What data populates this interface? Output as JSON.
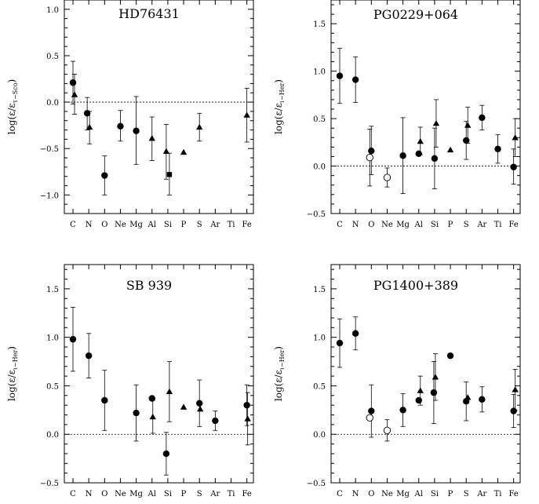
{
  "elements": [
    "C",
    "N",
    "O",
    "Ne",
    "Mg",
    "Al",
    "Si",
    "P",
    "S",
    "Ar",
    "Ti",
    "Fe"
  ],
  "chart_data": [
    {
      "type": "scatter",
      "title": "HD76431",
      "ylabel": "log(ε/ε",
      "ylabel_sub": "τ−Sco",
      "ylim": [
        -1.2,
        1.1
      ],
      "yticks": [
        1.0,
        0.5,
        0.0,
        -0.5,
        -1.0
      ],
      "ytick_labels": [
        "1.0",
        "0.5",
        "0.0",
        "−0.5",
        "−1.0"
      ],
      "reference_line": 0,
      "points": [
        {
          "el": "C",
          "dx": 0.0,
          "y": 0.21,
          "lo": -0.02,
          "hi": 0.44,
          "marker": "circle"
        },
        {
          "el": "C",
          "dx": 0.1,
          "y": 0.08,
          "lo": -0.13,
          "hi": 0.3,
          "marker": "triangle"
        },
        {
          "el": "N",
          "dx": -0.1,
          "y": -0.12,
          "lo": -0.3,
          "hi": 0.05,
          "marker": "circle"
        },
        {
          "el": "N",
          "dx": 0.05,
          "y": -0.27,
          "lo": -0.45,
          "hi": -0.1,
          "marker": "triangle"
        },
        {
          "el": "O",
          "dx": 0.0,
          "y": -0.79,
          "lo": -1.0,
          "hi": -0.58,
          "marker": "circle"
        },
        {
          "el": "Ne",
          "dx": 0.0,
          "y": -0.26,
          "lo": -0.42,
          "hi": -0.09,
          "marker": "circle"
        },
        {
          "el": "Mg",
          "dx": 0.0,
          "y": -0.31,
          "lo": -0.67,
          "hi": 0.06,
          "marker": "circle"
        },
        {
          "el": "Al",
          "dx": 0.0,
          "y": -0.39,
          "lo": -0.63,
          "hi": -0.16,
          "marker": "triangle"
        },
        {
          "el": "Si",
          "dx": -0.1,
          "y": -0.53,
          "lo": -0.83,
          "hi": -0.24,
          "marker": "triangle"
        },
        {
          "el": "Si",
          "dx": 0.1,
          "y": -0.78,
          "lo": -1.0,
          "hi": -0.55,
          "marker": "square"
        },
        {
          "el": "P",
          "dx": 0.0,
          "y": -0.54,
          "lo": null,
          "hi": null,
          "marker": "triangle"
        },
        {
          "el": "S",
          "dx": 0.0,
          "y": -0.27,
          "lo": -0.42,
          "hi": -0.12,
          "marker": "triangle"
        },
        {
          "el": "Fe",
          "dx": 0.0,
          "y": -0.14,
          "lo": -0.43,
          "hi": 0.15,
          "marker": "triangle"
        }
      ]
    },
    {
      "type": "scatter",
      "title": "PG0229+064",
      "ylabel": "log(ε/ε",
      "ylabel_sub": "ι−Her",
      "ylim": [
        -0.5,
        1.75
      ],
      "yticks": [
        1.5,
        1.0,
        0.5,
        0.0,
        -0.5
      ],
      "ytick_labels": [
        "1.5",
        "1.0",
        "0.5",
        "0.0",
        "−0.5"
      ],
      "reference_line": 0,
      "points": [
        {
          "el": "C",
          "dx": 0.0,
          "y": 0.95,
          "lo": 0.66,
          "hi": 1.24,
          "marker": "circle"
        },
        {
          "el": "N",
          "dx": 0.0,
          "y": 0.91,
          "lo": 0.67,
          "hi": 1.15,
          "marker": "circle"
        },
        {
          "el": "O",
          "dx": 0.0,
          "y": 0.16,
          "lo": -0.09,
          "hi": 0.42,
          "marker": "circle"
        },
        {
          "el": "O",
          "dx": -0.1,
          "y": 0.09,
          "lo": -0.21,
          "hi": 0.39,
          "marker": "open-circle"
        },
        {
          "el": "Ne",
          "dx": 0.0,
          "y": -0.12,
          "lo": -0.22,
          "hi": -0.02,
          "marker": "open-circle"
        },
        {
          "el": "Mg",
          "dx": 0.0,
          "y": 0.11,
          "lo": -0.29,
          "hi": 0.51,
          "marker": "circle"
        },
        {
          "el": "Al",
          "dx": 0.0,
          "y": 0.13,
          "lo": null,
          "hi": null,
          "marker": "circle"
        },
        {
          "el": "Al",
          "dx": 0.1,
          "y": 0.26,
          "lo": 0.12,
          "hi": 0.41,
          "marker": "triangle"
        },
        {
          "el": "Si",
          "dx": 0.0,
          "y": 0.08,
          "lo": -0.24,
          "hi": 0.4,
          "marker": "circle"
        },
        {
          "el": "Si",
          "dx": 0.1,
          "y": 0.45,
          "lo": 0.2,
          "hi": 0.7,
          "marker": "triangle"
        },
        {
          "el": "P",
          "dx": 0.0,
          "y": 0.17,
          "lo": null,
          "hi": null,
          "marker": "triangle"
        },
        {
          "el": "S",
          "dx": 0.0,
          "y": 0.27,
          "lo": 0.07,
          "hi": 0.47,
          "marker": "circle"
        },
        {
          "el": "S",
          "dx": 0.1,
          "y": 0.43,
          "lo": 0.24,
          "hi": 0.62,
          "marker": "triangle"
        },
        {
          "el": "Ar",
          "dx": 0.0,
          "y": 0.51,
          "lo": 0.38,
          "hi": 0.64,
          "marker": "circle"
        },
        {
          "el": "Ti",
          "dx": 0.0,
          "y": 0.18,
          "lo": 0.03,
          "hi": 0.33,
          "marker": "circle"
        },
        {
          "el": "Fe",
          "dx": 0.0,
          "y": -0.01,
          "lo": -0.19,
          "hi": 0.18,
          "marker": "circle"
        },
        {
          "el": "Fe",
          "dx": 0.1,
          "y": 0.3,
          "lo": 0.1,
          "hi": 0.5,
          "marker": "triangle"
        }
      ]
    },
    {
      "type": "scatter",
      "title": "SB 939",
      "ylabel": "log(ε/ε",
      "ylabel_sub": "ι−Her",
      "ylim": [
        -0.5,
        1.75
      ],
      "yticks": [
        1.5,
        1.0,
        0.5,
        0.0,
        -0.5
      ],
      "ytick_labels": [
        "1.5",
        "1.0",
        "0.5",
        "0.0",
        "−0.5"
      ],
      "reference_line": 0,
      "points": [
        {
          "el": "C",
          "dx": 0.0,
          "y": 0.98,
          "lo": 0.65,
          "hi": 1.31,
          "marker": "circle"
        },
        {
          "el": "N",
          "dx": 0.0,
          "y": 0.81,
          "lo": 0.58,
          "hi": 1.04,
          "marker": "circle"
        },
        {
          "el": "O",
          "dx": 0.0,
          "y": 0.35,
          "lo": 0.04,
          "hi": 0.66,
          "marker": "circle"
        },
        {
          "el": "Mg",
          "dx": 0.0,
          "y": 0.22,
          "lo": -0.07,
          "hi": 0.51,
          "marker": "circle"
        },
        {
          "el": "Al",
          "dx": 0.0,
          "y": 0.37,
          "lo": null,
          "hi": null,
          "marker": "circle"
        },
        {
          "el": "Al",
          "dx": 0.05,
          "y": 0.18,
          "lo": 0.01,
          "hi": 0.35,
          "marker": "triangle"
        },
        {
          "el": "Si",
          "dx": -0.1,
          "y": -0.2,
          "lo": -0.42,
          "hi": 0.02,
          "marker": "circle"
        },
        {
          "el": "Si",
          "dx": 0.1,
          "y": 0.44,
          "lo": 0.13,
          "hi": 0.75,
          "marker": "triangle"
        },
        {
          "el": "P",
          "dx": 0.0,
          "y": 0.28,
          "lo": null,
          "hi": null,
          "marker": "triangle"
        },
        {
          "el": "S",
          "dx": 0.0,
          "y": 0.32,
          "lo": 0.08,
          "hi": 0.56,
          "marker": "circle"
        },
        {
          "el": "S",
          "dx": 0.05,
          "y": 0.26,
          "lo": null,
          "hi": null,
          "marker": "triangle"
        },
        {
          "el": "Ar",
          "dx": 0.0,
          "y": 0.14,
          "lo": 0.04,
          "hi": 0.24,
          "marker": "circle"
        },
        {
          "el": "Fe",
          "dx": 0.0,
          "y": 0.3,
          "lo": 0.09,
          "hi": 0.51,
          "marker": "circle"
        },
        {
          "el": "Fe",
          "dx": 0.05,
          "y": 0.16,
          "lo": -0.11,
          "hi": 0.43,
          "marker": "triangle"
        }
      ]
    },
    {
      "type": "scatter",
      "title": "PG1400+389",
      "ylabel": "log(ε/ε",
      "ylabel_sub": "ι−Her",
      "ylim": [
        -0.5,
        1.75
      ],
      "yticks": [
        1.5,
        1.0,
        0.5,
        0.0,
        -0.5
      ],
      "ytick_labels": [
        "1.5",
        "1.0",
        "0.5",
        "0.0",
        "−0.5"
      ],
      "reference_line": 0,
      "points": [
        {
          "el": "C",
          "dx": 0.0,
          "y": 0.94,
          "lo": 0.69,
          "hi": 1.19,
          "marker": "circle"
        },
        {
          "el": "N",
          "dx": 0.0,
          "y": 1.04,
          "lo": 0.87,
          "hi": 1.21,
          "marker": "circle"
        },
        {
          "el": "O",
          "dx": 0.0,
          "y": 0.24,
          "lo": -0.03,
          "hi": 0.51,
          "marker": "circle"
        },
        {
          "el": "O",
          "dx": -0.1,
          "y": 0.17,
          "lo": null,
          "hi": null,
          "marker": "open-circle"
        },
        {
          "el": "Ne",
          "dx": 0.0,
          "y": 0.04,
          "lo": -0.07,
          "hi": 0.15,
          "marker": "open-circle"
        },
        {
          "el": "Mg",
          "dx": 0.0,
          "y": 0.25,
          "lo": 0.08,
          "hi": 0.42,
          "marker": "circle"
        },
        {
          "el": "Al",
          "dx": 0.0,
          "y": 0.35,
          "lo": null,
          "hi": null,
          "marker": "circle"
        },
        {
          "el": "Al",
          "dx": 0.1,
          "y": 0.45,
          "lo": 0.3,
          "hi": 0.6,
          "marker": "triangle"
        },
        {
          "el": "Si",
          "dx": -0.05,
          "y": 0.43,
          "lo": 0.11,
          "hi": 0.75,
          "marker": "circle"
        },
        {
          "el": "Si",
          "dx": 0.05,
          "y": 0.59,
          "lo": 0.35,
          "hi": 0.83,
          "marker": "triangle"
        },
        {
          "el": "P",
          "dx": 0.0,
          "y": 0.81,
          "lo": null,
          "hi": null,
          "marker": "circle"
        },
        {
          "el": "S",
          "dx": 0.0,
          "y": 0.34,
          "lo": 0.14,
          "hi": 0.54,
          "marker": "circle"
        },
        {
          "el": "S",
          "dx": 0.1,
          "y": 0.38,
          "lo": null,
          "hi": null,
          "marker": "triangle"
        },
        {
          "el": "Ar",
          "dx": 0.0,
          "y": 0.36,
          "lo": 0.23,
          "hi": 0.49,
          "marker": "circle"
        },
        {
          "el": "Fe",
          "dx": 0.0,
          "y": 0.24,
          "lo": 0.07,
          "hi": 0.41,
          "marker": "circle"
        },
        {
          "el": "Fe",
          "dx": 0.1,
          "y": 0.46,
          "lo": 0.25,
          "hi": 0.67,
          "marker": "triangle"
        }
      ]
    }
  ]
}
